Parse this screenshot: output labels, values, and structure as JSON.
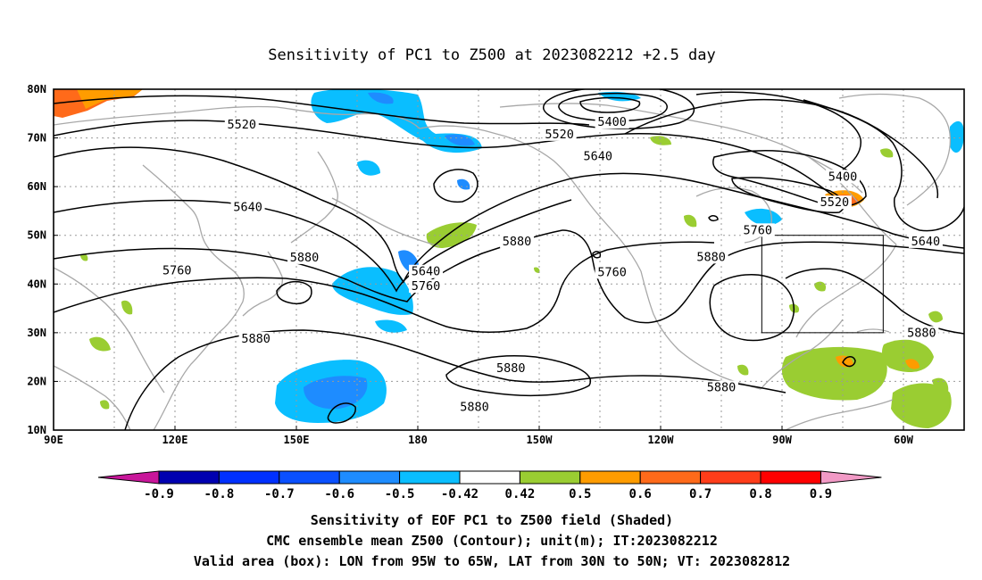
{
  "title": "Sensitivity of PC1 to Z500 at 2023082212 +2.5 day",
  "map": {
    "lon_labels": [
      "90E",
      "120E",
      "150E",
      "180",
      "150W",
      "120W",
      "90W",
      "60W"
    ],
    "lat_labels": [
      "80N",
      "70N",
      "60N",
      "50N",
      "40N",
      "30N",
      "20N",
      "10N"
    ],
    "lon_range_deg_east": [
      90,
      315
    ],
    "lat_range_deg_north": [
      10,
      80
    ],
    "grid": "dotted",
    "colors": {
      "coastline": "#a8a8a8",
      "contour": "#000000",
      "frame": "#000000"
    },
    "valid_box": {
      "lon_deg_east": [
        265,
        295
      ],
      "lat_deg_north": [
        30,
        50
      ]
    },
    "contour_labels": [
      {
        "text": "5520",
        "lon": 136.5,
        "lat": 72.5
      },
      {
        "text": "5520",
        "lon": 215,
        "lat": 70.5
      },
      {
        "text": "5400",
        "lon": 228,
        "lat": 73
      },
      {
        "text": "5640",
        "lon": 224.5,
        "lat": 66
      },
      {
        "text": "5400",
        "lon": 285,
        "lat": 61.8
      },
      {
        "text": "5520",
        "lon": 283,
        "lat": 56.5
      },
      {
        "text": "5760",
        "lon": 264,
        "lat": 50.8
      },
      {
        "text": "5640",
        "lon": 305.5,
        "lat": 48.5
      },
      {
        "text": "5640",
        "lon": 138,
        "lat": 55.5
      },
      {
        "text": "5760",
        "lon": 120.5,
        "lat": 42.5
      },
      {
        "text": "5880",
        "lon": 152,
        "lat": 45.2
      },
      {
        "text": "5640",
        "lon": 182,
        "lat": 42.3
      },
      {
        "text": "5760",
        "lon": 182,
        "lat": 39.3
      },
      {
        "text": "5880",
        "lon": 204.5,
        "lat": 48.5
      },
      {
        "text": "5760",
        "lon": 228,
        "lat": 42.2
      },
      {
        "text": "5880",
        "lon": 252.5,
        "lat": 45.3
      },
      {
        "text": "5880",
        "lon": 140,
        "lat": 28.5
      },
      {
        "text": "5880",
        "lon": 203,
        "lat": 22.5
      },
      {
        "text": "5880",
        "lon": 194,
        "lat": 14.5
      },
      {
        "text": "5880",
        "lon": 255,
        "lat": 18.5
      },
      {
        "text": "5880",
        "lon": 304.5,
        "lat": 29.7
      }
    ]
  },
  "colorbar": {
    "levels": [
      "-0.9",
      "-0.8",
      "-0.7",
      "-0.6",
      "-0.5",
      "-0.42",
      "0.42",
      "0.5",
      "0.6",
      "0.7",
      "0.8",
      "0.9"
    ],
    "colors": [
      "#0000b0",
      "#0030ff",
      "#0a50ff",
      "#1e8cff",
      "#0abeff",
      "#ffffff",
      "#9acd32",
      "#ff9c00",
      "#ff6a1a",
      "#ff3d1a",
      "#ff0000"
    ],
    "low_extend_color": "#c8169a",
    "high_extend_color": "#f29ac6"
  },
  "captions": [
    "Sensitivity of EOF PC1 to Z500 field (Shaded)",
    "CMC ensemble mean Z500 (Contour); unit(m); IT:2023082212",
    "Valid area (box): LON from 95W to 65W, LAT from 30N to 50N; VT: 2023082812"
  ]
}
